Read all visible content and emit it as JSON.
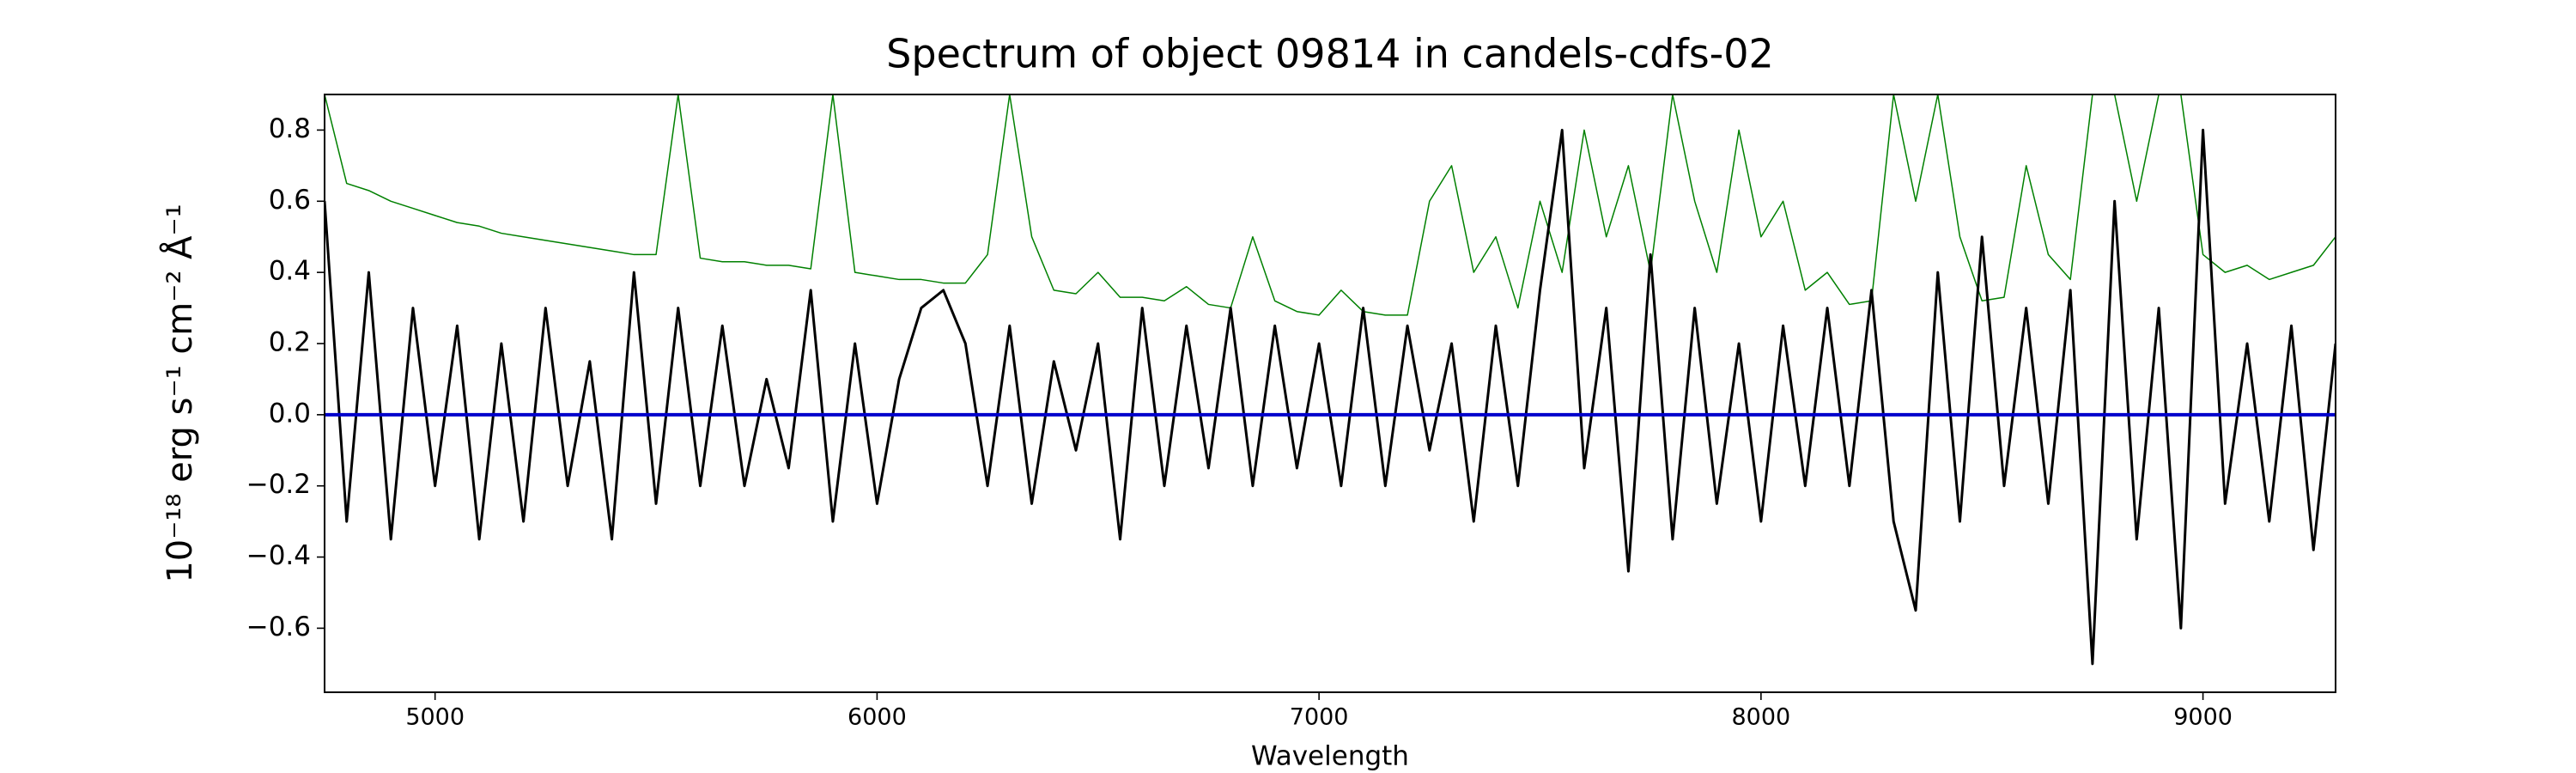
{
  "chart_data": {
    "type": "line",
    "title": "Spectrum of object 09814 in candels-cdfs-02",
    "x_label": "Wavelength",
    "y_label": "10⁻¹⁸ erg s⁻¹ cm⁻² Å⁻¹",
    "x": [
      4750,
      4800,
      4850,
      4900,
      4950,
      5000,
      5050,
      5100,
      5150,
      5200,
      5250,
      5300,
      5350,
      5400,
      5450,
      5500,
      5550,
      5600,
      5650,
      5700,
      5750,
      5800,
      5850,
      5900,
      5950,
      6000,
      6050,
      6100,
      6150,
      6200,
      6250,
      6300,
      6350,
      6400,
      6450,
      6500,
      6550,
      6600,
      6650,
      6700,
      6750,
      6800,
      6850,
      6900,
      6950,
      7000,
      7050,
      7100,
      7150,
      7200,
      7250,
      7300,
      7350,
      7400,
      7450,
      7500,
      7550,
      7600,
      7650,
      7700,
      7750,
      7800,
      7850,
      7900,
      7950,
      8000,
      8050,
      8100,
      8150,
      8200,
      8250,
      8300,
      8350,
      8400,
      8450,
      8500,
      8550,
      8600,
      8650,
      8700,
      8750,
      8800,
      8850,
      8900,
      8950,
      9000,
      9050,
      9100,
      9150,
      9200,
      9250,
      9300
    ],
    "series": [
      {
        "color": "#008000",
        "values": [
          0.9,
          0.65,
          0.63,
          0.6,
          0.58,
          0.56,
          0.54,
          0.53,
          0.51,
          0.5,
          0.49,
          0.48,
          0.47,
          0.46,
          0.45,
          0.45,
          0.9,
          0.44,
          0.43,
          0.43,
          0.42,
          0.42,
          0.41,
          0.9,
          0.4,
          0.39,
          0.38,
          0.38,
          0.37,
          0.37,
          0.45,
          0.9,
          0.5,
          0.35,
          0.34,
          0.4,
          0.33,
          0.33,
          0.32,
          0.36,
          0.31,
          0.3,
          0.5,
          0.32,
          0.29,
          0.28,
          0.35,
          0.29,
          0.28,
          0.28,
          0.6,
          0.7,
          0.4,
          0.5,
          0.3,
          0.6,
          0.4,
          0.8,
          0.5,
          0.7,
          0.4,
          0.9,
          0.6,
          0.4,
          0.8,
          0.5,
          0.6,
          0.35,
          0.4,
          0.31,
          0.32,
          0.9,
          0.6,
          0.9,
          0.5,
          0.32,
          0.33,
          0.7,
          0.45,
          0.38,
          0.9,
          0.9,
          0.6,
          0.9,
          0.9,
          0.45,
          0.4,
          0.42,
          0.38,
          0.4,
          0.42,
          0.5
        ]
      },
      {
        "color": "#000000",
        "values": [
          0.6,
          -0.3,
          0.4,
          -0.35,
          0.3,
          -0.2,
          0.25,
          -0.35,
          0.2,
          -0.3,
          0.3,
          -0.2,
          0.15,
          -0.35,
          0.4,
          -0.25,
          0.3,
          -0.2,
          0.25,
          -0.2,
          0.1,
          -0.15,
          0.35,
          -0.3,
          0.2,
          -0.25,
          0.1,
          0.3,
          0.35,
          0.2,
          -0.2,
          0.25,
          -0.25,
          0.15,
          -0.1,
          0.2,
          -0.35,
          0.3,
          -0.2,
          0.25,
          -0.15,
          0.3,
          -0.2,
          0.25,
          -0.15,
          0.2,
          -0.2,
          0.3,
          -0.2,
          0.25,
          -0.1,
          0.2,
          -0.3,
          0.25,
          -0.2,
          0.35,
          0.8,
          -0.15,
          0.3,
          -0.44,
          0.45,
          -0.35,
          0.3,
          -0.25,
          0.2,
          -0.3,
          0.25,
          -0.2,
          0.3,
          -0.2,
          0.35,
          -0.3,
          -0.55,
          0.4,
          -0.3,
          0.5,
          -0.2,
          0.3,
          -0.25,
          0.35,
          -0.7,
          0.6,
          -0.35,
          0.3,
          -0.6,
          0.8,
          -0.25,
          0.2,
          -0.3,
          0.25,
          -0.38,
          0.2
        ]
      },
      {
        "color": "#0000cc",
        "values": [
          0,
          0,
          0,
          0,
          0,
          0,
          0,
          0,
          0,
          0,
          0,
          0,
          0,
          0,
          0,
          0,
          0,
          0,
          0,
          0,
          0,
          0,
          0,
          0,
          0,
          0,
          0,
          0,
          0,
          0,
          0,
          0,
          0,
          0,
          0,
          0,
          0,
          0,
          0,
          0,
          0,
          0,
          0,
          0,
          0,
          0,
          0,
          0,
          0,
          0,
          0,
          0,
          0,
          0,
          0,
          0,
          0,
          0,
          0,
          0,
          0,
          0,
          0,
          0,
          0,
          0,
          0,
          0,
          0,
          0,
          0,
          0,
          0,
          0,
          0,
          0,
          0,
          0,
          0,
          0,
          0,
          0,
          0,
          0,
          0,
          0,
          0,
          0,
          0,
          0,
          0,
          0
        ]
      }
    ],
    "xlim": [
      4750,
      9300
    ],
    "ylim": [
      -0.78,
      0.9
    ],
    "xticks": [
      5000,
      6000,
      7000,
      8000,
      9000
    ],
    "yticks": [
      {
        "value": -0.6,
        "label": "−0.6"
      },
      {
        "value": -0.4,
        "label": "−0.4"
      },
      {
        "value": -0.2,
        "label": "−0.2"
      },
      {
        "value": 0,
        "label": "0.0"
      },
      0.2,
      0.4,
      0.6,
      0.8
    ]
  }
}
